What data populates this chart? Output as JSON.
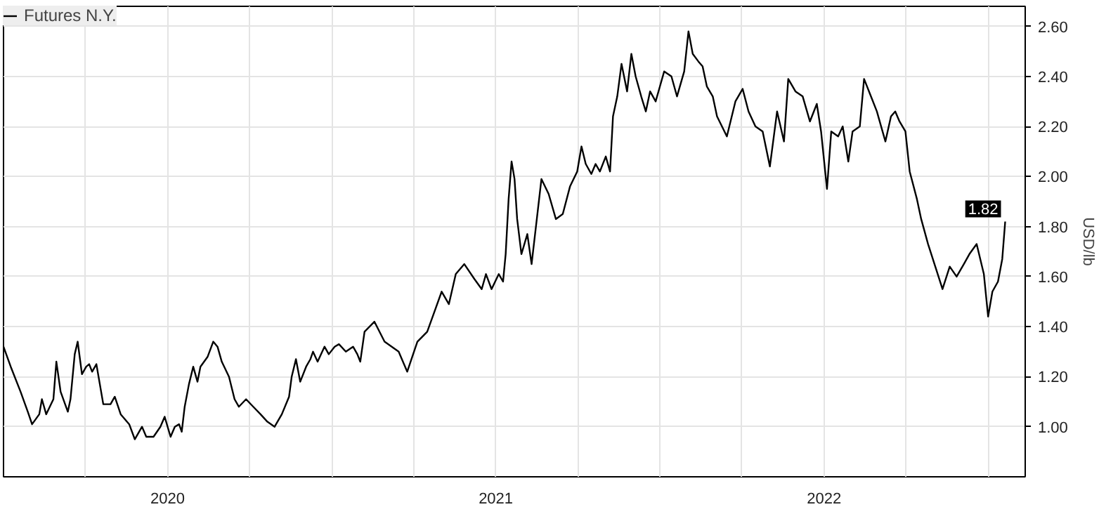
{
  "chart_data": {
    "type": "line",
    "ylabel": "USD/lb",
    "xlim": [
      2020.0,
      2023.113
    ],
    "ylim": [
      0.8,
      2.68
    ],
    "xticks": [
      {
        "value": 2020.25,
        "label": null
      },
      {
        "value": 2020.5,
        "label": "2020"
      },
      {
        "value": 2020.75,
        "label": null
      },
      {
        "value": 2021.0,
        "label": null
      },
      {
        "value": 2021.25,
        "label": null
      },
      {
        "value": 2021.5,
        "label": "2021"
      },
      {
        "value": 2021.75,
        "label": null
      },
      {
        "value": 2022.0,
        "label": null
      },
      {
        "value": 2022.25,
        "label": null
      },
      {
        "value": 2022.5,
        "label": "2022"
      },
      {
        "value": 2022.75,
        "label": null
      },
      {
        "value": 2023.0,
        "label": null
      }
    ],
    "yticks": [
      {
        "value": 1.0,
        "label": "1.00"
      },
      {
        "value": 1.2,
        "label": "1.20"
      },
      {
        "value": 1.4,
        "label": "1.40"
      },
      {
        "value": 1.6,
        "label": "1.60"
      },
      {
        "value": 1.8,
        "label": "1.80"
      },
      {
        "value": 2.0,
        "label": "2.00"
      },
      {
        "value": 2.2,
        "label": "2.20"
      },
      {
        "value": 2.4,
        "label": "2.40"
      },
      {
        "value": 2.6,
        "label": "2.60"
      }
    ],
    "grid": true,
    "legend": "top left",
    "marker": "none",
    "line_style": "solid",
    "annotations": [
      {
        "text": "1.82",
        "x": 2023.052,
        "y": 1.82
      }
    ],
    "series": [
      {
        "name": "Futures N.Y.",
        "color": "#000000",
        "x": [
          2020.0,
          2020.022,
          2020.052,
          2020.074,
          2020.087,
          2020.109,
          2020.117,
          2020.13,
          2020.152,
          2020.161,
          2020.174,
          2020.196,
          2020.204,
          2020.217,
          2020.226,
          2020.239,
          2020.252,
          2020.261,
          2020.27,
          2020.283,
          2020.304,
          2020.326,
          2020.339,
          2020.357,
          2020.383,
          2020.4,
          2020.422,
          2020.435,
          2020.457,
          2020.478,
          2020.491,
          2020.509,
          2020.522,
          2020.535,
          2020.543,
          2020.552,
          2020.565,
          2020.578,
          2020.591,
          2020.6,
          2020.622,
          2020.639,
          2020.652,
          2020.665,
          2020.687,
          2020.704,
          2020.717,
          2020.739,
          2020.761,
          2020.783,
          2020.804,
          2020.826,
          2020.848,
          2020.87,
          2020.878,
          2020.891,
          2020.904,
          2020.922,
          2020.935,
          2020.943,
          2020.957,
          2020.978,
          2020.991,
          2021.009,
          2021.022,
          2021.043,
          2021.065,
          2021.078,
          2021.087,
          2021.1,
          2021.13,
          2021.161,
          2021.204,
          2021.23,
          2021.261,
          2021.291,
          2021.313,
          2021.335,
          2021.357,
          2021.378,
          2021.404,
          2021.435,
          2021.457,
          2021.47,
          2021.487,
          2021.509,
          2021.522,
          2021.53,
          2021.539,
          2021.548,
          2021.557,
          2021.565,
          2021.578,
          2021.596,
          2021.609,
          2021.639,
          2021.661,
          2021.683,
          2021.704,
          2021.726,
          2021.748,
          2021.761,
          2021.774,
          2021.791,
          2021.804,
          2021.817,
          2021.835,
          2021.848,
          2021.857,
          2021.87,
          2021.883,
          2021.9,
          2021.913,
          2021.926,
          2021.943,
          2021.957,
          2021.97,
          2021.987,
          2022.0,
          2022.013,
          2022.035,
          2022.052,
          2022.074,
          2022.087,
          2022.1,
          2022.117,
          2022.13,
          2022.143,
          2022.161,
          2022.174,
          2022.204,
          2022.23,
          2022.252,
          2022.27,
          2022.291,
          2022.313,
          2022.335,
          2022.357,
          2022.378,
          2022.391,
          2022.413,
          2022.435,
          2022.457,
          2022.478,
          2022.491,
          2022.509,
          2022.522,
          2022.543,
          2022.557,
          2022.574,
          2022.587,
          2022.609,
          2022.622,
          2022.643,
          2022.661,
          2022.674,
          2022.687,
          2022.704,
          2022.717,
          2022.73,
          2022.748,
          2022.761,
          2022.783,
          2022.796,
          2022.817,
          2022.839,
          2022.861,
          2022.883,
          2022.904,
          2022.926,
          2022.943,
          2022.965,
          2022.987,
          2023.0,
          2023.013,
          2023.03,
          2023.043,
          2023.052
        ],
        "values": [
          1.32,
          1.24,
          1.14,
          1.06,
          1.01,
          1.05,
          1.11,
          1.05,
          1.11,
          1.26,
          1.14,
          1.06,
          1.11,
          1.29,
          1.34,
          1.21,
          1.24,
          1.25,
          1.22,
          1.25,
          1.09,
          1.09,
          1.12,
          1.05,
          1.01,
          0.95,
          1.0,
          0.96,
          0.96,
          1.0,
          1.04,
          0.96,
          1.0,
          1.01,
          0.98,
          1.08,
          1.17,
          1.24,
          1.18,
          1.24,
          1.28,
          1.34,
          1.32,
          1.26,
          1.2,
          1.11,
          1.08,
          1.11,
          1.08,
          1.05,
          1.02,
          1.0,
          1.05,
          1.12,
          1.2,
          1.27,
          1.18,
          1.24,
          1.27,
          1.3,
          1.26,
          1.32,
          1.29,
          1.32,
          1.33,
          1.3,
          1.32,
          1.29,
          1.26,
          1.38,
          1.42,
          1.34,
          1.3,
          1.22,
          1.34,
          1.38,
          1.46,
          1.54,
          1.49,
          1.61,
          1.65,
          1.59,
          1.55,
          1.61,
          1.55,
          1.61,
          1.58,
          1.69,
          1.91,
          2.06,
          1.99,
          1.83,
          1.69,
          1.77,
          1.65,
          1.99,
          1.93,
          1.83,
          1.85,
          1.96,
          2.02,
          2.12,
          2.05,
          2.01,
          2.05,
          2.02,
          2.08,
          2.02,
          2.24,
          2.32,
          2.45,
          2.34,
          2.49,
          2.4,
          2.32,
          2.26,
          2.34,
          2.3,
          2.36,
          2.42,
          2.4,
          2.32,
          2.42,
          2.58,
          2.49,
          2.46,
          2.44,
          2.36,
          2.32,
          2.24,
          2.16,
          2.3,
          2.35,
          2.26,
          2.2,
          2.18,
          2.04,
          2.26,
          2.14,
          2.39,
          2.34,
          2.32,
          2.22,
          2.29,
          2.18,
          1.95,
          2.18,
          2.16,
          2.2,
          2.06,
          2.18,
          2.2,
          2.39,
          2.32,
          2.26,
          2.2,
          2.14,
          2.24,
          2.26,
          2.22,
          2.18,
          2.02,
          1.91,
          1.83,
          1.73,
          1.64,
          1.55,
          1.64,
          1.6,
          1.65,
          1.69,
          1.73,
          1.61,
          1.44,
          1.54,
          1.58,
          1.67,
          1.82
        ]
      }
    ]
  }
}
